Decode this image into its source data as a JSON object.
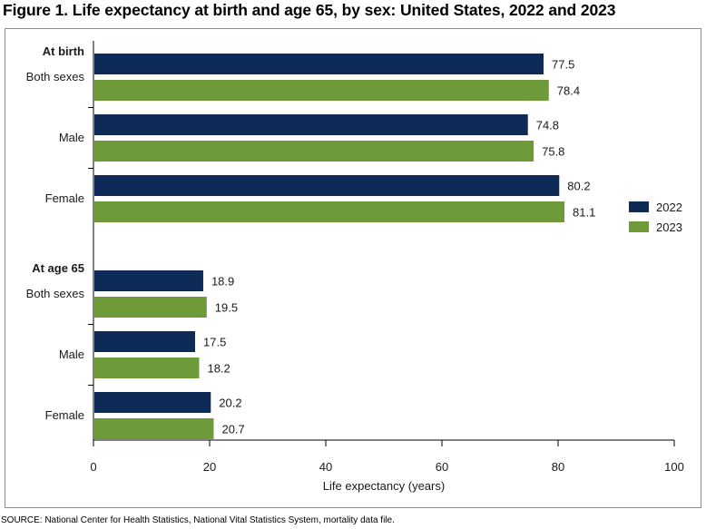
{
  "title": "Figure 1. Life expectancy at birth and age 65, by sex: United States, 2022 and 2023",
  "source": "SOURCE: National Center for Health Statistics, National Vital Statistics System, mortality data file.",
  "chart_data": {
    "type": "bar",
    "orientation": "horizontal",
    "groups": [
      {
        "heading": "At birth",
        "categories": [
          "Both sexes",
          "Male",
          "Female"
        ]
      },
      {
        "heading": "At age 65",
        "categories": [
          "Both sexes",
          "Male",
          "Female"
        ]
      }
    ],
    "series": [
      {
        "name": "2022",
        "color": "#0e2a56",
        "values": [
          77.5,
          74.8,
          80.2,
          18.9,
          17.5,
          20.2
        ]
      },
      {
        "name": "2023",
        "color": "#6f9a3a",
        "values": [
          78.4,
          75.8,
          81.1,
          19.5,
          18.2,
          20.7
        ]
      }
    ],
    "xlabel": "Life expectancy (years)",
    "xlim": [
      0,
      100
    ],
    "xticks": [
      0,
      20,
      40,
      60,
      80,
      100
    ],
    "grid": false,
    "legend": "right"
  }
}
